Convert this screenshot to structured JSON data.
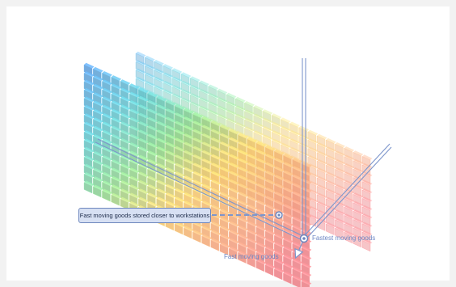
{
  "diagram": {
    "callout_text": "Fast moving goods stored closer to workstations",
    "label_fastest": "Fastest moving goods",
    "label_fast": "Fast moving goods",
    "colors": {
      "accent_line": "#7d96cc",
      "callout_fill": "#d7e0f3",
      "callout_border": "#6d86bd",
      "label_text": "#6d86c4",
      "gradient": [
        "#5b9bd8",
        "#62c0c8",
        "#8fd08a",
        "#f2c46a",
        "#f2a27a",
        "#ec7f86"
      ]
    }
  }
}
